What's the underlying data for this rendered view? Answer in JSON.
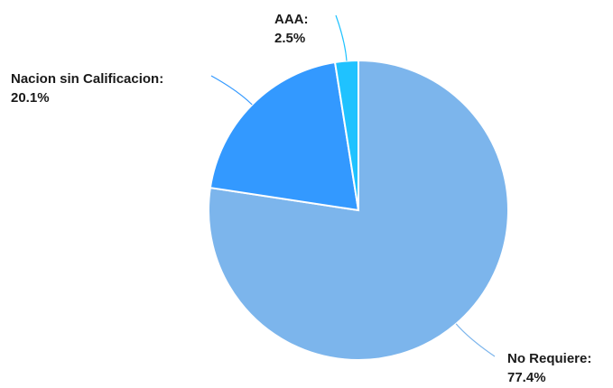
{
  "chart_data": {
    "type": "pie",
    "title": "",
    "slices": [
      {
        "label": "No Requiere:",
        "value_text": "77.4%",
        "value": 77.4,
        "color": "#7cb5ec"
      },
      {
        "label": "Nacion sin Calificacion:",
        "value_text": "20.1%",
        "value": 20.1,
        "color": "#3399ff"
      },
      {
        "label": "AAA:",
        "value_text": "2.5%",
        "value": 2.5,
        "color": "#1fc2ff"
      }
    ],
    "start": "12 o'clock",
    "direction": "clockwise"
  }
}
